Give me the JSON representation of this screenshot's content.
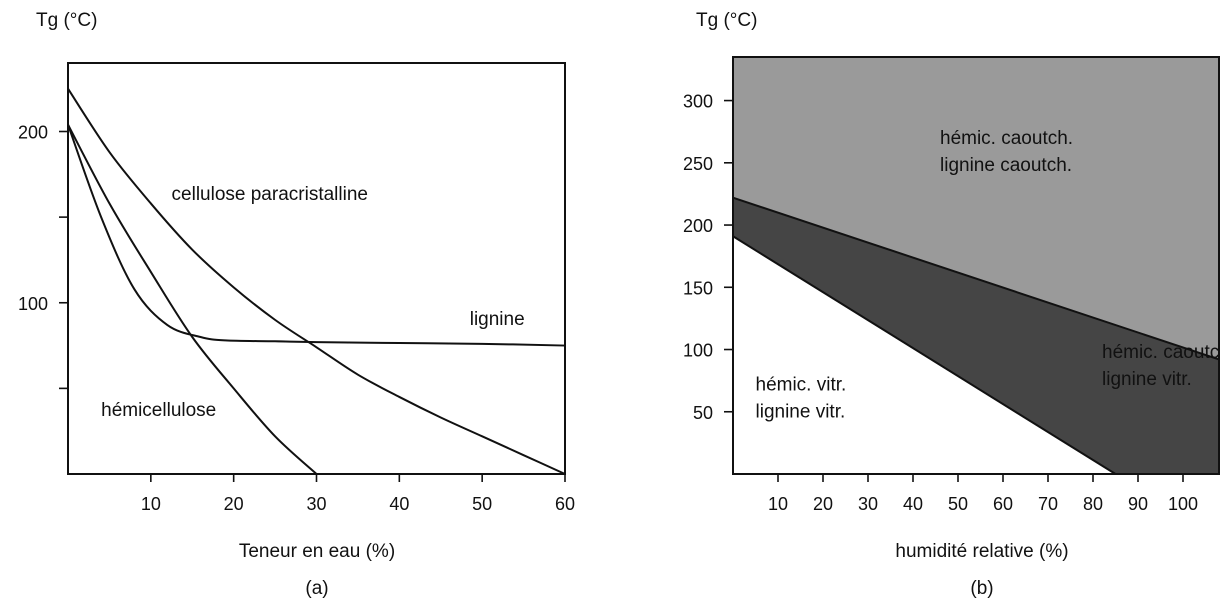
{
  "chart_data": [
    {
      "type": "line",
      "panel_label": "(a)",
      "ylabel": "Tg (°C)",
      "xlabel": "Teneur en eau (%)",
      "xlim": [
        0,
        60
      ],
      "ylim": [
        0,
        240
      ],
      "x_ticks": [
        10,
        20,
        30,
        40,
        50,
        60
      ],
      "y_ticks": [
        50,
        100,
        150,
        200
      ],
      "y_tick_labels": [
        {
          "value": 100,
          "label": "100"
        },
        {
          "value": 200,
          "label": "200"
        }
      ],
      "series": [
        {
          "name": "cellulose paracristalline",
          "x": [
            0,
            5,
            10,
            15,
            20,
            25,
            30,
            35,
            40,
            45,
            50,
            55,
            60
          ],
          "y": [
            225,
            188,
            158,
            131,
            109,
            90,
            74,
            58,
            45,
            33,
            22,
            11,
            0
          ]
        },
        {
          "name": "lignine",
          "x": [
            0,
            4,
            8,
            12,
            16,
            19,
            25,
            30,
            40,
            50,
            60
          ],
          "y": [
            204,
            150,
            108,
            87,
            80,
            78,
            77.5,
            77,
            76.5,
            76,
            75
          ]
        },
        {
          "name": "hémicellulose",
          "x": [
            0,
            5,
            10,
            15,
            20,
            25,
            30
          ],
          "y": [
            204,
            158,
            118,
            80,
            50,
            22,
            0
          ]
        }
      ],
      "annotations": [
        {
          "text": "cellulose paracristalline",
          "x": 12.5,
          "y": 160
        },
        {
          "text": "lignine",
          "x": 48.5,
          "y": 87
        },
        {
          "text": "hémicellulose",
          "x": 4,
          "y": 34
        }
      ]
    },
    {
      "type": "area",
      "panel_label": "(b)",
      "ylabel": "Tg (°C)",
      "xlabel": "humidité relative (%)",
      "xlim": [
        0,
        108
      ],
      "ylim": [
        0,
        335
      ],
      "x_ticks": [
        10,
        20,
        30,
        40,
        50,
        60,
        70,
        80,
        90,
        100
      ],
      "y_ticks": [
        50,
        100,
        150,
        200,
        250,
        300
      ],
      "boundaries": [
        {
          "name": "upper",
          "x": [
            0,
            108
          ],
          "y": [
            222,
            92
          ]
        },
        {
          "name": "lower",
          "x": [
            0,
            85
          ],
          "y": [
            191,
            0
          ]
        }
      ],
      "regions": [
        {
          "lines": [
            "hémic. caoutch.",
            "lignine caoutch."
          ],
          "color": "#9a9a9a",
          "x": 46,
          "y": 265
        },
        {
          "lines": [
            "hémic. caoutch.",
            "lignine vitr."
          ],
          "color": "#454545",
          "x": 82,
          "y": 93
        },
        {
          "lines": [
            "hémic. vitr.",
            "lignine vitr."
          ],
          "color": "#ffffff",
          "x": 5,
          "y": 67
        }
      ]
    }
  ]
}
